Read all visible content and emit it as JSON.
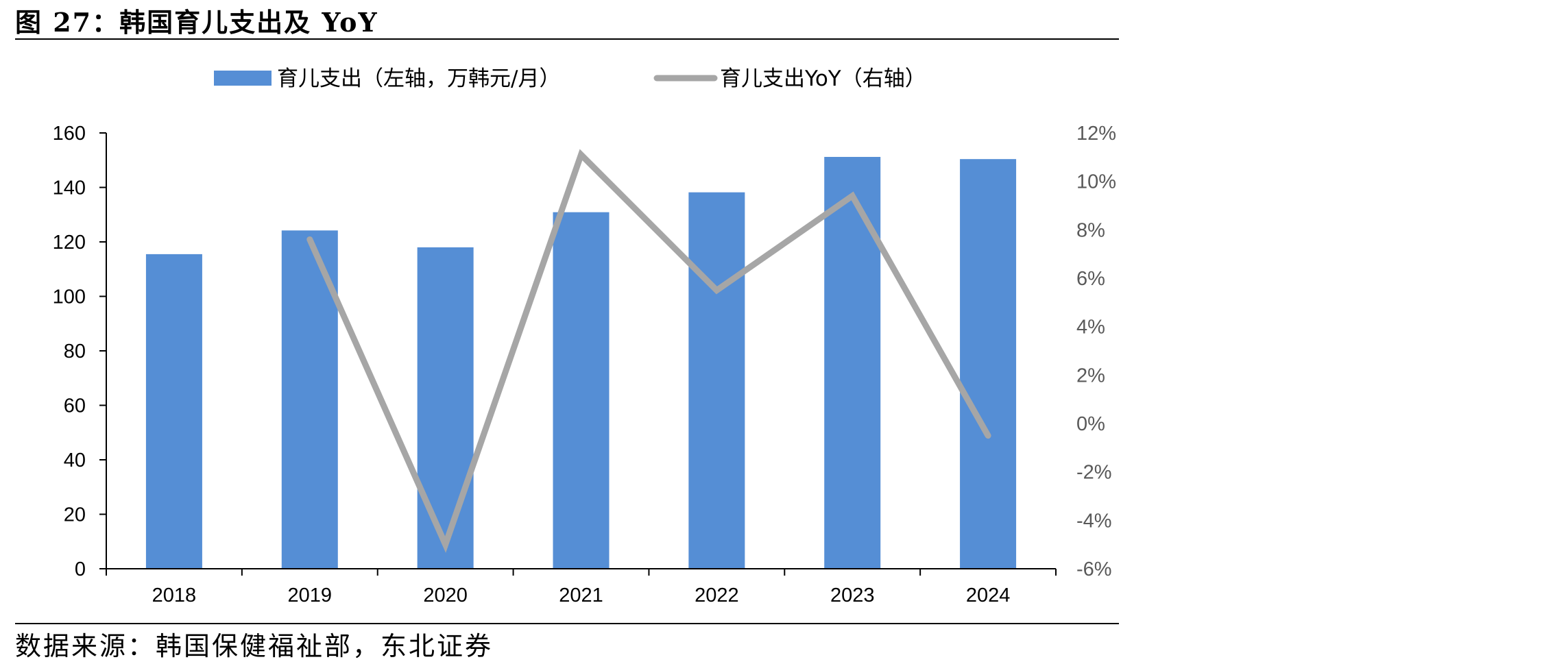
{
  "figure": {
    "title": "图 27：韩国育儿支出及 YoY",
    "source": "数据来源：韩国保健福祉部，东北证券"
  },
  "colors": {
    "bar": "#558ED5",
    "line": "#A6A6A6",
    "axis": "#000000",
    "right_tick_text": "#595959"
  },
  "chart_data": {
    "type": "bar",
    "categories": [
      "2018",
      "2019",
      "2020",
      "2021",
      "2022",
      "2023",
      "2024"
    ],
    "series": [
      {
        "name": "育儿支出（左轴，万韩元/月）",
        "type": "bar",
        "axis": "left",
        "values": [
          115.5,
          124.2,
          118.0,
          130.9,
          138.2,
          151.2,
          150.4
        ]
      },
      {
        "name": "育儿支出YoY（右轴）",
        "type": "line",
        "axis": "right",
        "values": [
          null,
          7.6,
          -5.0,
          11.1,
          5.5,
          9.4,
          -0.5
        ]
      }
    ],
    "y_left": {
      "min": 0,
      "max": 160,
      "ticks": [
        "0",
        "20",
        "40",
        "60",
        "80",
        "100",
        "120",
        "140",
        "160"
      ]
    },
    "y_right": {
      "min": -6,
      "max": 12,
      "ticks": [
        "-6%",
        "-4%",
        "-2%",
        "0%",
        "2%",
        "4%",
        "6%",
        "8%",
        "10%",
        "12%"
      ]
    },
    "legend_position": "top",
    "grid": false
  }
}
